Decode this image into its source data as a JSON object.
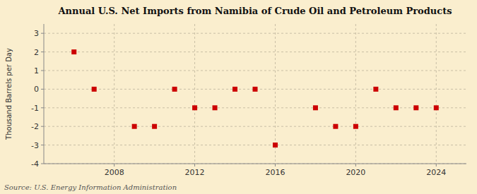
{
  "chart_data": {
    "type": "scatter",
    "title": "Annual U.S. Net Imports from Namibia of Crude Oil and Petroleum Products",
    "ylabel": "Thousand Barrels per Day",
    "source": "Source: U.S. Energy Information Administration",
    "x": [
      2006,
      2007,
      2009,
      2010,
      2011,
      2012,
      2013,
      2014,
      2015,
      2016,
      2018,
      2019,
      2020,
      2021,
      2022,
      2023,
      2024
    ],
    "values": [
      2,
      0,
      -2,
      -2,
      0,
      -1,
      -1,
      0,
      0,
      -3,
      -1,
      -2,
      -2,
      0,
      -1,
      -1,
      -1
    ],
    "color": "#cc0000",
    "marker": "square",
    "grid": true,
    "xlim": [
      2004.5,
      2025.5
    ],
    "ylim": [
      -4,
      3.5
    ],
    "xticks": [
      2008,
      2012,
      2016,
      2020,
      2024
    ],
    "yticks": [
      -4,
      -3,
      -2,
      -1,
      0,
      1,
      2,
      3
    ]
  }
}
